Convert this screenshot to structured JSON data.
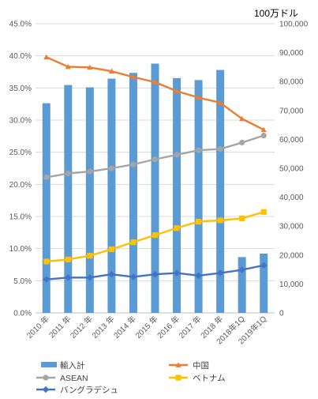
{
  "chart_data": {
    "type": "bar+line",
    "categories": [
      "2010 年",
      "2011 年",
      "2012 年",
      "2013 年",
      "2014 年",
      "2015 年",
      "2016 年",
      "2017 年",
      "2018 年",
      "2018年1Q",
      "2019年1Q"
    ],
    "left_axis": {
      "range": [
        0,
        0.45
      ],
      "ticks": [
        "0.0%",
        "5.0%",
        "10.0%",
        "15.0%",
        "20.0%",
        "25.0%",
        "30.0%",
        "35.0%",
        "40.0%",
        "45.0%"
      ]
    },
    "right_axis": {
      "unit_label": "100万ドル",
      "range": [
        0,
        100000
      ],
      "ticks": [
        "0",
        "10,000",
        "20,000",
        "30,000",
        "40,000",
        "50,000",
        "60,000",
        "70,000",
        "80,000",
        "90,000",
        "100,000"
      ]
    },
    "bar_series": {
      "name": "輸入計",
      "color": "#5b9bd5",
      "axis": "right",
      "values": [
        72500,
        78800,
        78000,
        81000,
        83000,
        86200,
        81200,
        80500,
        84000,
        19300,
        20500
      ]
    },
    "line_series": [
      {
        "name": "中国",
        "color": "#ed7d31",
        "marker": "triangle",
        "axis": "left",
        "values": [
          0.398,
          0.383,
          0.382,
          0.376,
          0.367,
          0.359,
          0.345,
          0.335,
          0.327,
          0.302,
          0.285
        ]
      },
      {
        "name": "ASEAN",
        "color": "#a5a5a5",
        "marker": "circle",
        "axis": "left",
        "values": [
          0.211,
          0.217,
          0.22,
          0.225,
          0.231,
          0.239,
          0.246,
          0.253,
          0.255,
          0.265,
          0.276
        ]
      },
      {
        "name": "ベトナム",
        "color": "#ffc000",
        "marker": "square",
        "axis": "left",
        "values": [
          0.08,
          0.083,
          0.089,
          0.099,
          0.11,
          0.121,
          0.132,
          0.142,
          0.144,
          0.147,
          0.157
        ]
      },
      {
        "name": "バングラデシュ",
        "color": "#4472c4",
        "marker": "diamond",
        "axis": "left",
        "values": [
          0.052,
          0.055,
          0.055,
          0.06,
          0.056,
          0.06,
          0.062,
          0.058,
          0.062,
          0.067,
          0.074
        ]
      }
    ],
    "grid": true,
    "legend_position": "bottom"
  }
}
